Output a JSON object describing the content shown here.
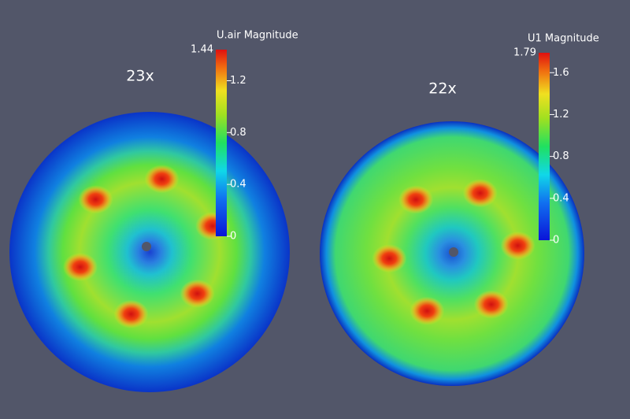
{
  "panels": [
    {
      "label": "23x",
      "colorbar": {
        "title": "U.air Magnitude",
        "range": [
          0,
          1.44
        ],
        "ticks": [
          0,
          0.4,
          0.8,
          1.2
        ]
      }
    },
    {
      "label": "22x",
      "colorbar": {
        "title": "U1 Magnitude",
        "range": [
          0,
          1.79
        ],
        "ticks": [
          0,
          0.4,
          0.8,
          1.2,
          1.6
        ]
      }
    }
  ]
}
